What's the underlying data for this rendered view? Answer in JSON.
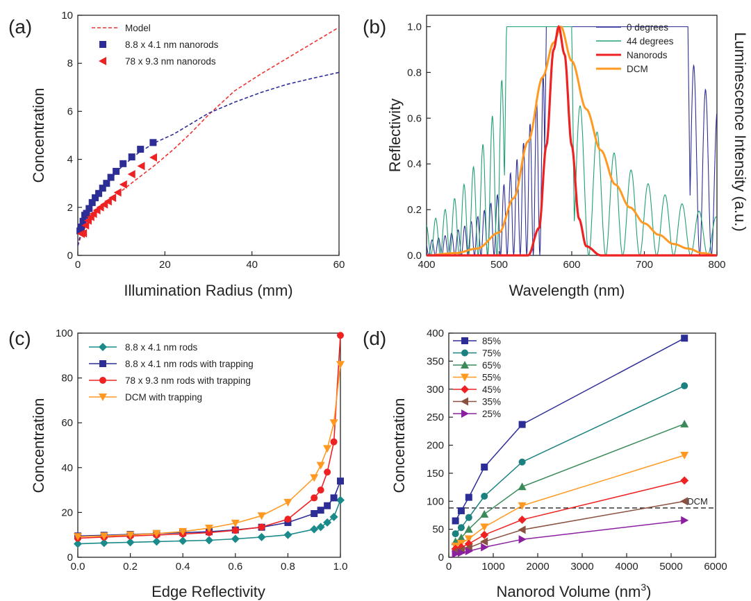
{
  "chart_data": [
    {
      "panel": "(a)",
      "type": "scatter",
      "xlabel": "Illumination Radius (mm)",
      "ylabel": "Concentration",
      "xlim": [
        0,
        60
      ],
      "ylim": [
        0,
        10
      ],
      "xticks": [
        0,
        20,
        40,
        60
      ],
      "yticks": [
        0,
        2,
        4,
        6,
        8,
        10
      ],
      "legend_position": "top-left",
      "series": [
        {
          "name": "Model",
          "style": "dashed",
          "color": "#ee3333",
          "x": [
            0,
            1,
            2,
            4,
            6,
            8,
            10,
            14,
            18,
            22,
            26,
            30,
            36,
            42,
            48,
            54,
            60
          ],
          "y": [
            0.4,
            0.95,
            1.25,
            1.72,
            2.08,
            2.38,
            2.68,
            3.24,
            3.8,
            4.42,
            5.1,
            5.85,
            6.85,
            7.55,
            8.2,
            8.85,
            9.5
          ]
        },
        {
          "name": "Model",
          "style": "dashed",
          "color": "#2d2d96",
          "x": [
            0,
            1,
            2,
            4,
            6,
            8,
            10,
            14,
            18,
            22,
            26,
            30,
            36,
            42,
            48,
            54,
            60
          ],
          "y": [
            0.4,
            1.2,
            1.6,
            2.3,
            2.82,
            3.28,
            3.68,
            4.28,
            4.72,
            5.05,
            5.48,
            5.92,
            6.38,
            6.78,
            7.12,
            7.38,
            7.62
          ]
        },
        {
          "name": "8.8 x 4.1 nm  nanorods",
          "marker": "square",
          "color": "#2d2d96",
          "x": [
            0.5,
            0.8,
            1.2,
            1.6,
            2,
            2.6,
            3.3,
            4,
            4.8,
            5.7,
            6.6,
            7.6,
            8.8,
            10.4,
            12.4,
            14.4,
            17.3
          ],
          "y": [
            1.02,
            1.18,
            1.42,
            1.67,
            1.75,
            1.95,
            2.2,
            2.4,
            2.58,
            2.8,
            3.0,
            3.25,
            3.5,
            3.82,
            4.1,
            4.42,
            4.7
          ]
        },
        {
          "name": "78 x 9.3 nm  nanorods",
          "marker": "triangle-left",
          "color": "#ee2222",
          "x": [
            0.8,
            1.3,
            1.8,
            2.4,
            3,
            3.6,
            4.4,
            5.2,
            6.1,
            7,
            8,
            9.2,
            10.5,
            12.4,
            14.6,
            17.4
          ],
          "y": [
            0.9,
            0.92,
            1.25,
            1.45,
            1.6,
            1.73,
            1.88,
            2.0,
            2.12,
            2.25,
            2.4,
            2.62,
            2.95,
            3.38,
            3.72,
            4.08
          ]
        }
      ]
    },
    {
      "panel": "(b)",
      "type": "line",
      "xlabel": "Wavelength (nm)",
      "ylabel": "Reflectivity",
      "ylabel_right": "Luminescence Intensity (a.u.)",
      "xlim": [
        400,
        800
      ],
      "ylim": [
        0,
        1.05
      ],
      "xticks": [
        400,
        500,
        600,
        700,
        800
      ],
      "yticks": [
        "0.0",
        "0.2",
        "0.4",
        "0.6",
        "0.8",
        "1.0"
      ],
      "legend_position": "top-right",
      "series": [
        {
          "name": "0 degrees",
          "color": "#2d2d96",
          "x": [
            400,
            500,
            560,
            565,
            760,
            765,
            800
          ],
          "y": [
            0.0,
            0.2,
            0.82,
            1.0,
            1.0,
            0.83,
            0.3
          ]
        },
        {
          "name": "44 degrees",
          "color": "#20a070",
          "x": [
            400,
            480,
            505,
            510,
            600,
            605,
            700,
            800
          ],
          "y": [
            0.0,
            0.5,
            0.95,
            1.0,
            1.0,
            0.66,
            0.26,
            0.12
          ]
        },
        {
          "name": "Nanorods",
          "color": "#ee2222",
          "x": [
            540,
            555,
            565,
            575,
            582,
            590,
            600,
            610,
            620,
            640
          ],
          "y": [
            0.0,
            0.12,
            0.48,
            0.9,
            1.0,
            0.88,
            0.48,
            0.16,
            0.04,
            0.0
          ]
        },
        {
          "name": "DCM",
          "color": "#ff9922",
          "x": [
            400,
            440,
            470,
            500,
            520,
            540,
            560,
            575,
            585,
            600,
            620,
            640,
            660,
            680,
            700,
            720,
            740,
            760,
            780,
            800
          ],
          "y": [
            0.0,
            0.01,
            0.03,
            0.1,
            0.25,
            0.5,
            0.78,
            0.93,
            1.0,
            0.85,
            0.64,
            0.46,
            0.31,
            0.21,
            0.14,
            0.09,
            0.05,
            0.03,
            0.01,
            0.0
          ]
        }
      ]
    },
    {
      "panel": "(c)",
      "type": "line",
      "xlabel": "Edge Reflectivity",
      "ylabel": "Concentration",
      "xlim": [
        0,
        1
      ],
      "ylim": [
        0,
        100
      ],
      "xticks": [
        "0.0",
        "0.2",
        "0.4",
        "0.6",
        "0.8",
        "1.0"
      ],
      "yticks": [
        0,
        20,
        40,
        60,
        80,
        100
      ],
      "legend_position": "top-left",
      "series": [
        {
          "name": "8.8 x 4.1 nm rods",
          "marker": "diamond",
          "color": "#1a8a8a",
          "x": [
            0,
            0.1,
            0.2,
            0.3,
            0.4,
            0.5,
            0.6,
            0.7,
            0.8,
            0.9,
            0.925,
            0.95,
            0.975,
            1.0
          ],
          "y": [
            6,
            6.4,
            6.7,
            7.0,
            7.3,
            7.6,
            8.2,
            9.0,
            10.0,
            12.5,
            13.5,
            15.5,
            18,
            25.5
          ]
        },
        {
          "name": "8.8 x 4.1 nm rods with trapping",
          "marker": "square",
          "color": "#2d2d96",
          "x": [
            0,
            0.1,
            0.2,
            0.3,
            0.4,
            0.5,
            0.6,
            0.7,
            0.8,
            0.9,
            0.925,
            0.95,
            0.975,
            1.0
          ],
          "y": [
            9.5,
            9.8,
            10.2,
            10.6,
            11.0,
            11.4,
            12.2,
            13.4,
            15.5,
            19.5,
            21,
            23,
            26.5,
            34
          ]
        },
        {
          "name": "78 x 9.3 nm rods  with trapping",
          "marker": "circle",
          "color": "#ee2222",
          "x": [
            0,
            0.1,
            0.2,
            0.3,
            0.4,
            0.5,
            0.6,
            0.7,
            0.8,
            0.9,
            0.925,
            0.95,
            0.975,
            1.0
          ],
          "y": [
            8.5,
            9.0,
            9.5,
            9.9,
            10.4,
            11.0,
            12.0,
            13.5,
            17,
            26.5,
            30,
            38,
            51.5,
            99
          ]
        },
        {
          "name": "DCM with trapping",
          "marker": "triangle-down",
          "color": "#ff9922",
          "x": [
            0,
            0.1,
            0.2,
            0.3,
            0.4,
            0.5,
            0.6,
            0.7,
            0.8,
            0.9,
            0.925,
            0.95,
            0.975,
            1.0
          ],
          "y": [
            9.2,
            9.5,
            10.0,
            10.6,
            11.5,
            13.0,
            15.2,
            18.5,
            24.5,
            35.5,
            41,
            48.5,
            60,
            86
          ]
        }
      ]
    },
    {
      "panel": "(d)",
      "type": "line",
      "xlabel": "Nanorod Volume (nm3)",
      "ylabel": "Concentration",
      "xlim": [
        0,
        6000
      ],
      "ylim": [
        0,
        400
      ],
      "xticks": [
        0,
        1000,
        2000,
        3000,
        4000,
        5000,
        6000
      ],
      "yticks": [
        0,
        50,
        100,
        150,
        200,
        250,
        300,
        350,
        400
      ],
      "legend_position": "top-left",
      "annotation": {
        "label": "DCM",
        "y": 88
      },
      "x": [
        150,
        280,
        450,
        800,
        1650,
        5300
      ],
      "series": [
        {
          "name": "85%",
          "marker": "square",
          "color": "#2d2d96",
          "values": [
            65,
            83,
            107,
            161,
            237,
            391
          ]
        },
        {
          "name": "75%",
          "marker": "circle",
          "color": "#1a8080",
          "values": [
            42,
            53,
            71,
            109,
            170,
            306
          ]
        },
        {
          "name": "65%",
          "marker": "triangle-up",
          "color": "#3a8a5a",
          "values": [
            28,
            35,
            50,
            77,
            126,
            238
          ]
        },
        {
          "name": "55%",
          "marker": "triangle-down",
          "color": "#ff9922",
          "values": [
            20,
            25,
            33,
            54,
            92,
            182
          ]
        },
        {
          "name": "45%",
          "marker": "diamond",
          "color": "#ee2222",
          "values": [
            15,
            18,
            24,
            40,
            67,
            137
          ]
        },
        {
          "name": "35%",
          "marker": "triangle-left",
          "color": "#8a5040",
          "values": [
            10,
            13,
            17,
            28,
            49,
            100
          ]
        },
        {
          "name": "25%",
          "marker": "triangle-right",
          "color": "#8a20a0",
          "values": [
            6,
            8,
            11,
            18,
            32,
            66
          ]
        }
      ]
    }
  ]
}
